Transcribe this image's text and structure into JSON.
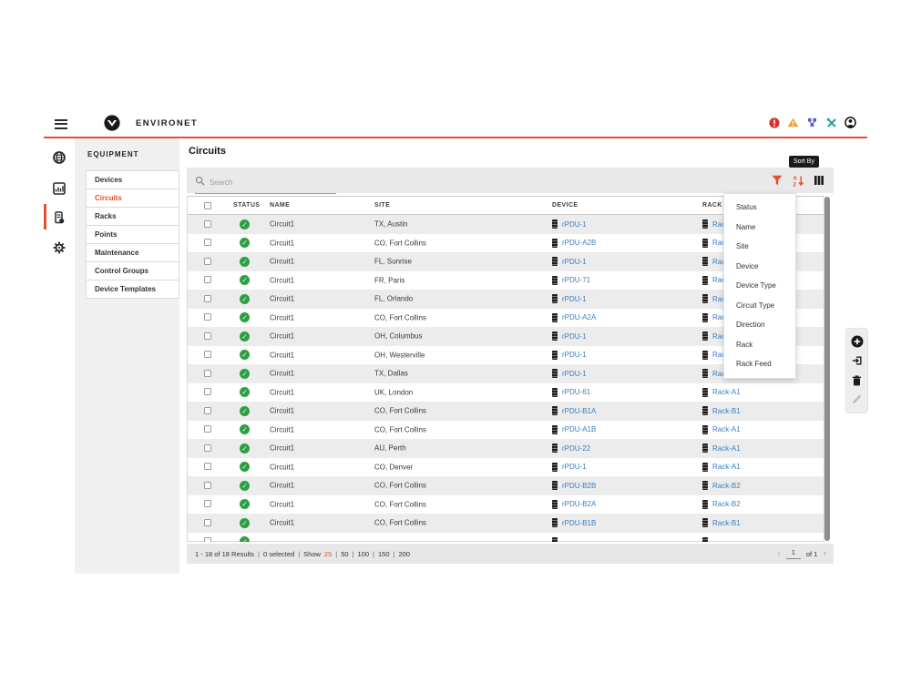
{
  "colors": {
    "accent": "#e4502e",
    "link": "#3a7fc2",
    "status_ok": "#2f9e41",
    "critical": "#d0342c",
    "warning": "#f0a030",
    "network": "#5a5fc7",
    "maintenance": "#2aa198",
    "scrollbar": "#8f8f8f"
  },
  "topbar": {
    "app_name": "ENVIRONET",
    "icons": [
      "menu-icon",
      "vertiv-logo-icon",
      "critical-alarm-icon",
      "warning-alarm-icon",
      "network-icon",
      "maintenance-icon",
      "user-account-icon"
    ]
  },
  "rail": {
    "items": [
      {
        "icon": "globe-icon",
        "active": false
      },
      {
        "icon": "dashboard-icon",
        "active": false
      },
      {
        "icon": "equipment-icon",
        "active": true
      },
      {
        "icon": "settings-gear-icon",
        "active": false
      }
    ]
  },
  "sidebar": {
    "title": "EQUIPMENT",
    "active_item": "Circuits",
    "items": [
      "Devices",
      "Circuits",
      "Racks",
      "Points",
      "Maintenance",
      "Control Groups",
      "Device Templates"
    ]
  },
  "main": {
    "title": "Circuits",
    "toolbar": {
      "search_placeholder": "Search",
      "icons": [
        "filter-icon",
        "sort-icon",
        "columns-icon"
      ],
      "sort_tooltip": "Sort By"
    },
    "sort_menu": {
      "items": [
        "Status",
        "Name",
        "Site",
        "Device",
        "Device Type",
        "Circuit Type",
        "Direction",
        "Rack",
        "Rack Feed"
      ]
    },
    "table": {
      "columns": [
        "STATUS",
        "NAME",
        "SITE",
        "DEVICE",
        "RACK"
      ],
      "rows": [
        {
          "status": "ok",
          "name": "Circuit1",
          "site": "TX, Austin",
          "device": "rPDU-1",
          "rack": "Rac",
          "rack_covered": true
        },
        {
          "status": "ok",
          "name": "Circuit1",
          "site": "CO, Fort Collins",
          "device": "rPDU-A2B",
          "rack": "Rac",
          "rack_covered": true
        },
        {
          "status": "ok",
          "name": "Circuit1",
          "site": "FL, Sunrise",
          "device": "rPDU-1",
          "rack": "Rac",
          "rack_covered": true
        },
        {
          "status": "ok",
          "name": "Circuit1",
          "site": "FR, Paris",
          "device": "rPDU-71",
          "rack": "Rac",
          "rack_covered": true
        },
        {
          "status": "ok",
          "name": "Circuit1",
          "site": "FL, Orlando",
          "device": "rPDU-1",
          "rack": "Rac",
          "rack_covered": true
        },
        {
          "status": "ok",
          "name": "Circuit1",
          "site": "CO, Fort Collins",
          "device": "rPDU-A2A",
          "rack": "Rac",
          "rack_covered": true
        },
        {
          "status": "ok",
          "name": "Circuit1",
          "site": "OH, Columbus",
          "device": "rPDU-1",
          "rack": "Rac",
          "rack_covered": true
        },
        {
          "status": "ok",
          "name": "Circuit1",
          "site": "OH, Westerville",
          "device": "rPDU-1",
          "rack": "Rac",
          "rack_covered": true
        },
        {
          "status": "ok",
          "name": "Circuit1",
          "site": "TX, Dallas",
          "device": "rPDU-1",
          "rack": "Rack-A1",
          "rack_covered": false
        },
        {
          "status": "ok",
          "name": "Circuit1",
          "site": "UK, London",
          "device": "rPDU-61",
          "rack": "Rack-A1",
          "rack_covered": false
        },
        {
          "status": "ok",
          "name": "Circuit1",
          "site": "CO, Fort Collins",
          "device": "rPDU-B1A",
          "rack": "Rack-B1",
          "rack_covered": false
        },
        {
          "status": "ok",
          "name": "Circuit1",
          "site": "CO, Fort Collins",
          "device": "rPDU-A1B",
          "rack": "Rack-A1",
          "rack_covered": false
        },
        {
          "status": "ok",
          "name": "Circuit1",
          "site": "AU, Perth",
          "device": "rPDU-22",
          "rack": "Rack-A1",
          "rack_covered": false
        },
        {
          "status": "ok",
          "name": "Circuit1",
          "site": "CO, Denver",
          "device": "rPDU-1",
          "rack": "Rack-A1",
          "rack_covered": false
        },
        {
          "status": "ok",
          "name": "Circuit1",
          "site": "CO, Fort Collins",
          "device": "rPDU-B2B",
          "rack": "Rack-B2",
          "rack_covered": false
        },
        {
          "status": "ok",
          "name": "Circuit1",
          "site": "CO, Fort Collins",
          "device": "rPDU-B2A",
          "rack": "Rack-B2",
          "rack_covered": false
        },
        {
          "status": "ok",
          "name": "Circuit1",
          "site": "CO, Fort Collins",
          "device": "rPDU-B1B",
          "rack": "Rack-B1",
          "rack_covered": false
        },
        {
          "status": "ok",
          "name": "",
          "site": "",
          "device": "",
          "rack": "",
          "partial": true
        }
      ]
    },
    "pagination": {
      "results": "1 - 18 of 18 Results",
      "selected": "0 selected",
      "show_label": "Show",
      "page_sizes": [
        "25",
        "50",
        "100",
        "150",
        "200"
      ],
      "active_page_size": "25",
      "page": "1",
      "of_label": "of 1"
    },
    "action_panel": {
      "icons": [
        "add-icon",
        "import-icon",
        "delete-icon",
        "edit-icon"
      ]
    }
  }
}
